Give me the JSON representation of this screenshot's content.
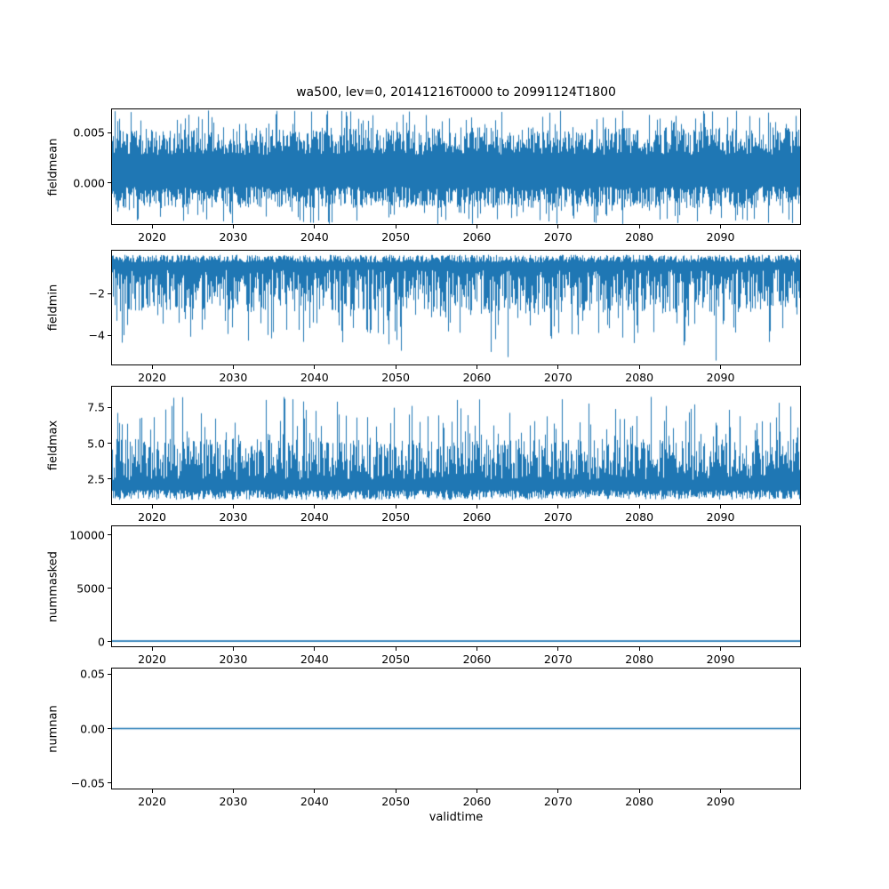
{
  "chart_data": {
    "type": "line",
    "title": "wa500, lev=0, 20141216T0000 to 20991124T1800",
    "xlabel": "validtime",
    "legend": "none",
    "grid": false,
    "x": {
      "min": 2014.96,
      "max": 2099.9,
      "ticks": [
        2020,
        2030,
        2040,
        2050,
        2060,
        2070,
        2080,
        2090
      ],
      "tick_labels": [
        "2020",
        "2030",
        "2040",
        "2050",
        "2060",
        "2070",
        "2080",
        "2090"
      ]
    },
    "panels": [
      {
        "ylabel": "fieldmean",
        "color": "#1f77b4",
        "ylim": [
          -0.0042,
          0.0074
        ],
        "yticks": [
          {
            "v": 0.0,
            "label": "0.000"
          },
          {
            "v": 0.005,
            "label": "0.005"
          }
        ],
        "summary": "dense noisy series, mean ~0.0015, typical range -0.002 to 0.0045, extremes -0.004 to 0.0073",
        "synth": {
          "kind": "band",
          "low": [
            -0.0026,
            -0.0004
          ],
          "high": [
            0.0028,
            0.0056
          ],
          "low_spikes": [
            {
              "p": 0.1,
              "range": [
                -0.0042,
                -0.0027
              ]
            }
          ],
          "high_spikes": [
            {
              "p": 0.1,
              "range": [
                0.0057,
                0.0073
              ]
            }
          ]
        }
      },
      {
        "ylabel": "fieldmin",
        "color": "#1f77b4",
        "ylim": [
          -5.45,
          0.12
        ],
        "yticks": [
          {
            "v": -2,
            "label": "−2"
          },
          {
            "v": -4,
            "label": "−4"
          }
        ],
        "summary": "dense band near 0 to -1 with frequent downward spikes to -3..-4.5, rare spikes to -5.3",
        "synth": {
          "kind": "band",
          "low": [
            -2.9,
            -0.8
          ],
          "high": [
            -0.45,
            -0.08
          ],
          "low_spikes": [
            {
              "p": 0.12,
              "range": [
                -4.4,
                -2.9
              ]
            },
            {
              "p": 0.015,
              "range": [
                -5.3,
                -4.4
              ]
            }
          ],
          "high_spikes": []
        }
      },
      {
        "ylabel": "fieldmax",
        "color": "#1f77b4",
        "ylim": [
          0.7,
          9.0
        ],
        "yticks": [
          {
            "v": 2.5,
            "label": "2.5"
          },
          {
            "v": 5.0,
            "label": "5.0"
          },
          {
            "v": 7.5,
            "label": "7.5"
          }
        ],
        "summary": "dense band ~1 to 5 with frequent upward spikes to 5.5-7, occasional spikes to ~8.3",
        "synth": {
          "kind": "band",
          "low": [
            1.0,
            1.7
          ],
          "high": [
            2.4,
            5.3
          ],
          "low_spikes": [],
          "high_spikes": [
            {
              "p": 0.12,
              "range": [
                5.3,
                7.2
              ]
            },
            {
              "p": 0.04,
              "range": [
                7.2,
                8.3
              ]
            }
          ]
        }
      },
      {
        "ylabel": "nummasked",
        "color": "#1f77b4",
        "ylim": [
          -500,
          10900
        ],
        "yticks": [
          {
            "v": 0,
            "label": "0"
          },
          {
            "v": 5000,
            "label": "5000"
          },
          {
            "v": 10000,
            "label": "10000"
          }
        ],
        "summary": "constant value 0 across entire time range",
        "synth": {
          "kind": "flat",
          "value": 0
        }
      },
      {
        "ylabel": "numnan",
        "color": "#1f77b4",
        "ylim": [
          -0.0557,
          0.0557
        ],
        "yticks": [
          {
            "v": -0.05,
            "label": "−0.05"
          },
          {
            "v": 0.0,
            "label": "0.00"
          },
          {
            "v": 0.05,
            "label": "0.05"
          }
        ],
        "summary": "constant value 0.00 across entire time range",
        "synth": {
          "kind": "flat",
          "value": 0
        }
      }
    ]
  }
}
